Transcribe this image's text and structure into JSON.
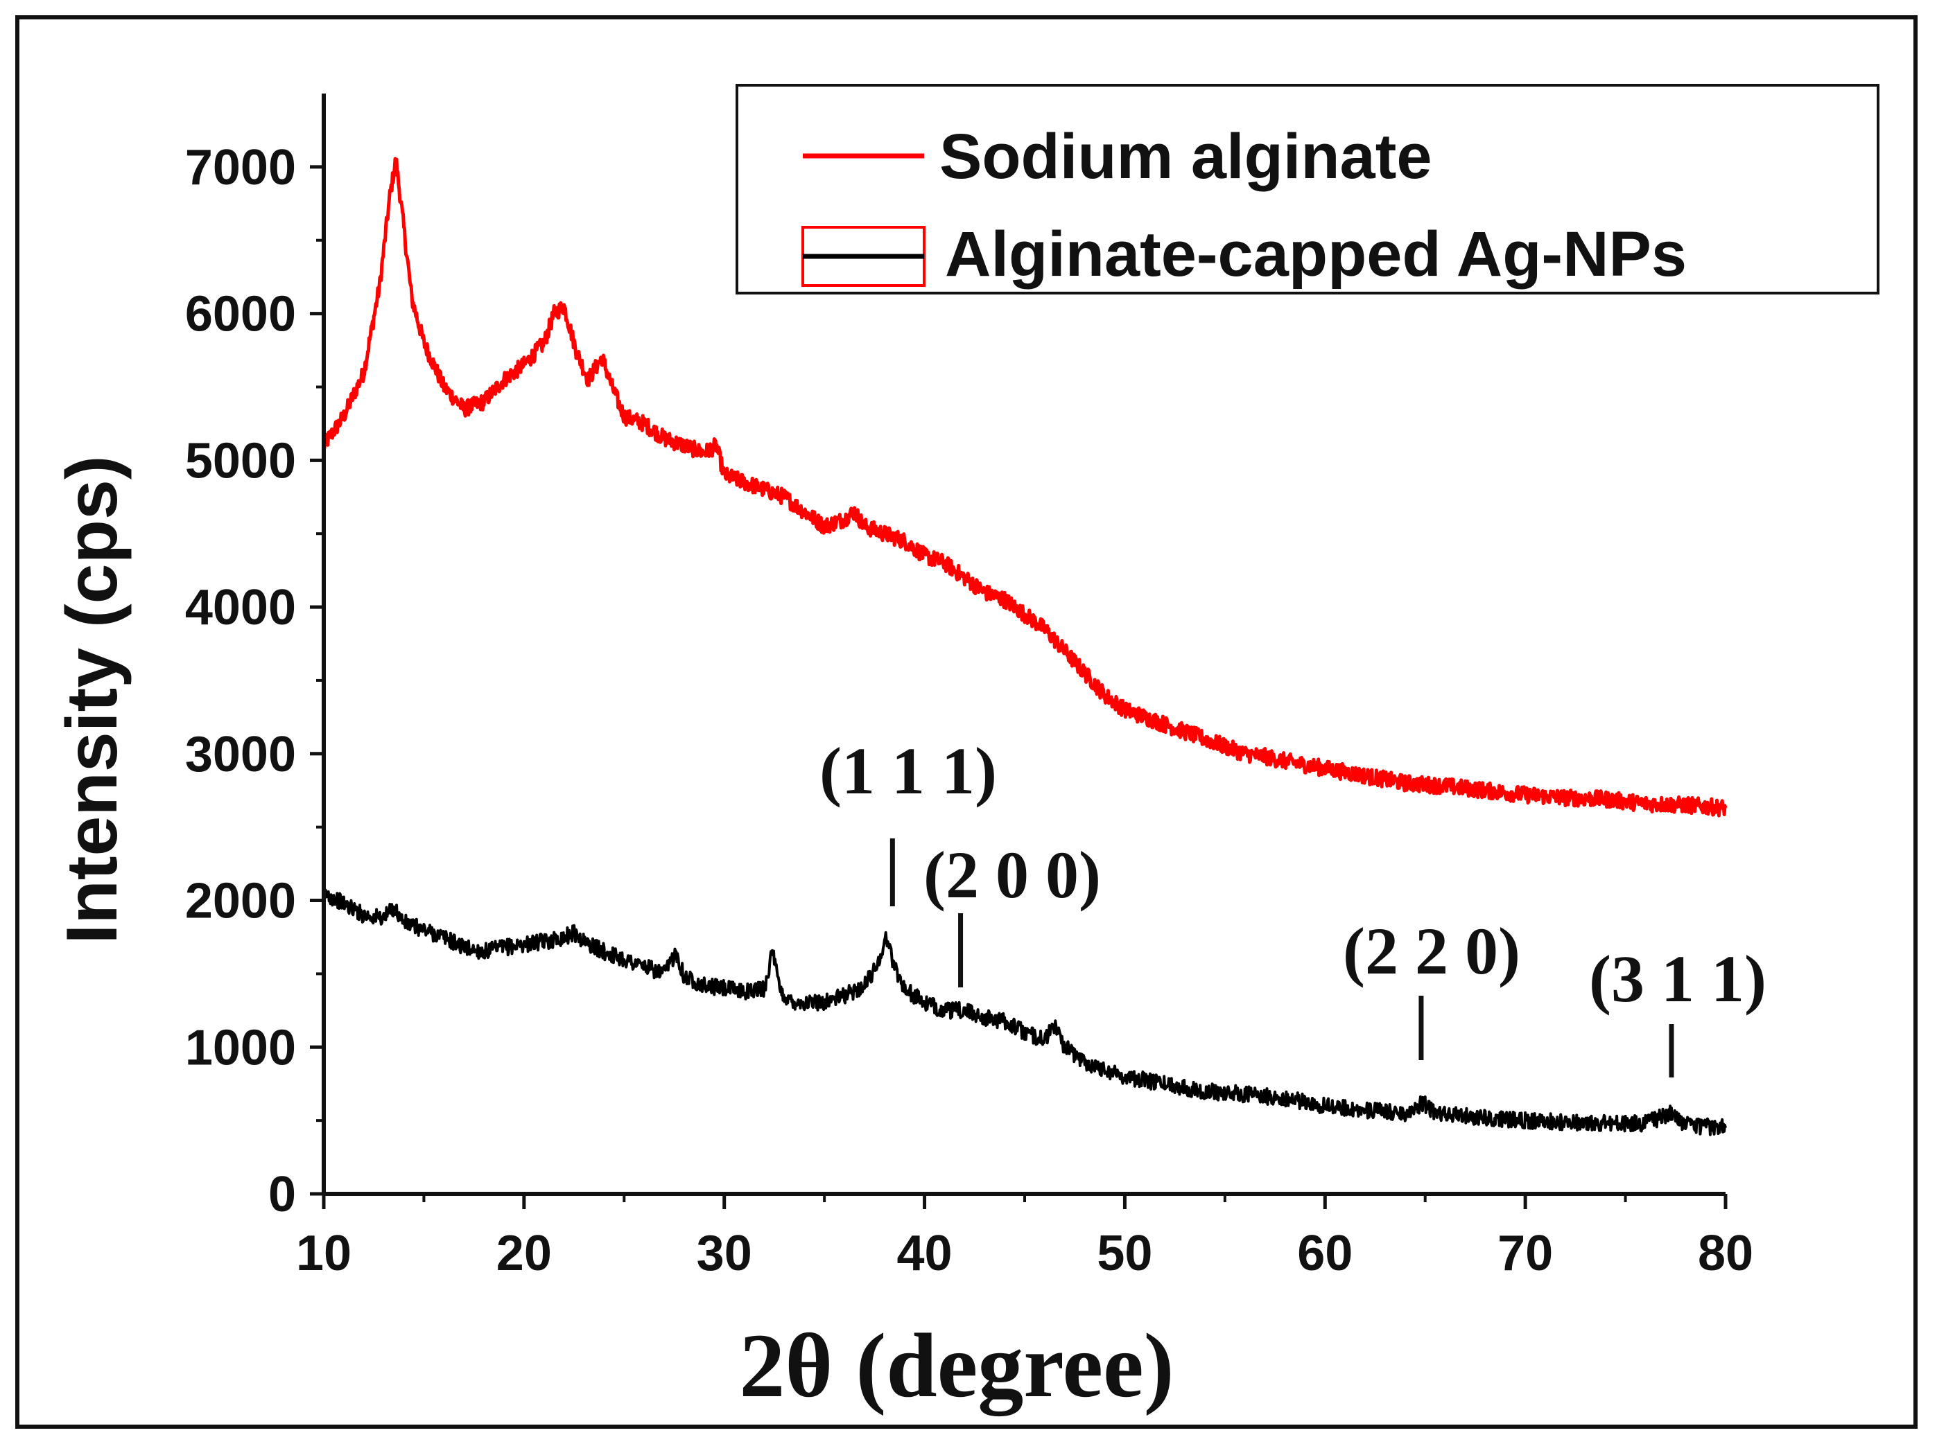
{
  "chart_data": {
    "type": "line",
    "title": "",
    "xlabel": "2θ (degree)",
    "ylabel": "Intensity (cps)",
    "xlim": [
      10,
      80
    ],
    "ylim": [
      0,
      7500
    ],
    "x_ticks": [
      10,
      20,
      30,
      40,
      50,
      60,
      70,
      80
    ],
    "y_ticks": [
      0,
      1000,
      2000,
      3000,
      4000,
      5000,
      6000,
      7000
    ],
    "legend_position": "top-right",
    "series": [
      {
        "name": "Sodium alginate",
        "color": "#ff0000",
        "x": [
          10,
          11,
          12,
          12.8,
          13.3,
          13.6,
          13.9,
          14.4,
          15,
          16,
          17,
          18,
          19,
          20,
          21,
          21.5,
          22,
          22.6,
          23.2,
          23.9,
          24.4,
          25,
          26,
          27,
          28,
          29,
          29.6,
          30,
          31,
          32,
          33,
          34,
          35,
          36,
          36.5,
          37,
          38,
          39,
          40,
          41,
          42,
          43,
          44,
          45,
          46,
          47,
          48,
          49,
          50,
          51,
          52,
          53,
          54,
          55,
          56,
          57,
          58,
          60,
          62,
          64,
          66,
          68,
          70,
          72,
          74,
          76,
          78,
          80
        ],
        "y": [
          5100,
          5300,
          5600,
          6200,
          6800,
          7050,
          6700,
          6100,
          5800,
          5500,
          5350,
          5400,
          5550,
          5650,
          5800,
          6000,
          6050,
          5750,
          5550,
          5700,
          5500,
          5300,
          5250,
          5150,
          5100,
          5050,
          5100,
          4900,
          4850,
          4800,
          4750,
          4650,
          4550,
          4600,
          4650,
          4550,
          4500,
          4450,
          4350,
          4300,
          4200,
          4100,
          4050,
          3950,
          3850,
          3700,
          3550,
          3400,
          3300,
          3250,
          3200,
          3150,
          3100,
          3050,
          3000,
          2980,
          2950,
          2900,
          2850,
          2800,
          2780,
          2750,
          2720,
          2700,
          2690,
          2660,
          2650,
          2630
        ]
      },
      {
        "name": "Alginate-capped Ag-NPs",
        "color": "#000000",
        "x": [
          10,
          11,
          12,
          13,
          13.5,
          14,
          15,
          16,
          17,
          18,
          19,
          20,
          21,
          22,
          22.5,
          23,
          24,
          25,
          26,
          27,
          27.6,
          28,
          28.4,
          29,
          30,
          31,
          32,
          32.4,
          32.8,
          33.2,
          34,
          35,
          36,
          37,
          37.6,
          38.1,
          38.5,
          39,
          39.5,
          40,
          41,
          42,
          43,
          44,
          45,
          46,
          46.5,
          47,
          48,
          49,
          50,
          52,
          54,
          56,
          58,
          60,
          62,
          64,
          64.9,
          65.5,
          66,
          68,
          70,
          72,
          74,
          76,
          77.3,
          78,
          80
        ],
        "y": [
          2050,
          1980,
          1900,
          1880,
          1950,
          1850,
          1800,
          1750,
          1680,
          1650,
          1680,
          1700,
          1720,
          1750,
          1780,
          1720,
          1650,
          1600,
          1550,
          1500,
          1650,
          1480,
          1460,
          1420,
          1400,
          1380,
          1400,
          1650,
          1380,
          1320,
          1300,
          1310,
          1350,
          1420,
          1550,
          1750,
          1550,
          1400,
          1350,
          1300,
          1250,
          1250,
          1200,
          1180,
          1100,
          1050,
          1150,
          1000,
          900,
          850,
          800,
          750,
          700,
          680,
          650,
          600,
          570,
          550,
          620,
          550,
          540,
          520,
          500,
          490,
          480,
          480,
          550,
          470,
          450
        ]
      }
    ],
    "annotations": [
      {
        "text": "(1 1 1)",
        "x": 38.4
      },
      {
        "text": "(2 0 0)",
        "x": 41.8
      },
      {
        "text": "(2 2 0)",
        "x": 64.8
      },
      {
        "text": "(3 1 1)",
        "x": 77.3
      }
    ]
  }
}
